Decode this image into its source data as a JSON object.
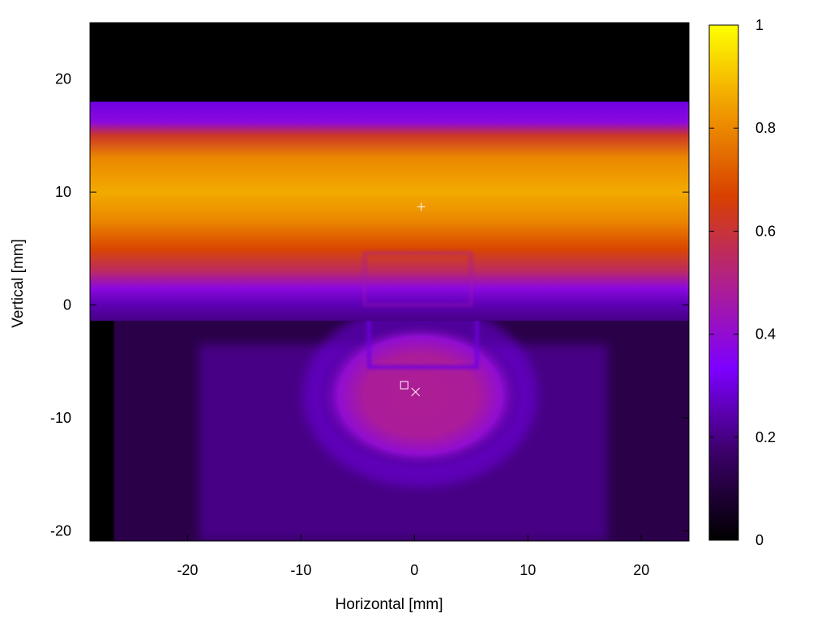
{
  "chart_data": {
    "type": "heatmap",
    "title": "",
    "xlabel": "Horizontal [mm]",
    "ylabel": "Vertical [mm]",
    "xlim": [
      -28.6,
      24.2
    ],
    "ylim": [
      -20.9,
      25.0
    ],
    "x_ticks": [
      -20,
      -10,
      0,
      10,
      20
    ],
    "y_ticks": [
      -20,
      -10,
      0,
      10,
      20
    ],
    "x_tick_labels": [
      "-20",
      "-10",
      "0",
      "10",
      "20"
    ],
    "y_tick_labels": [
      "-20",
      "-10",
      "0",
      "10",
      "20"
    ],
    "colorbar": {
      "range": [
        0,
        1
      ],
      "ticks": [
        0,
        0.2,
        0.4,
        0.6,
        0.8,
        1
      ],
      "tick_labels": [
        "0",
        "0.2",
        "0.4",
        "0.6",
        "0.8",
        "1"
      ],
      "colormap": [
        "#000000",
        "#3a0066",
        "#7d00ff",
        "#b0208c",
        "#d84000",
        "#f09a00",
        "#ffff00"
      ]
    },
    "markers": [
      {
        "symbol": "plus",
        "x": 0.6,
        "y": 8.7,
        "color": "#ffffff"
      },
      {
        "symbol": "square",
        "x": -0.9,
        "y": -7.1,
        "color": "#ffffff"
      },
      {
        "symbol": "cross",
        "x": 0.1,
        "y": -7.7,
        "color": "#ffffff"
      }
    ],
    "regions": {
      "top_dark": {
        "y_from": 18.0,
        "y_to": 25.0,
        "value": 0.0
      },
      "upper_beam": {
        "y_from": -1.4,
        "y_to": 18.0,
        "profile": [
          {
            "y": 18.0,
            "value": 0.3
          },
          {
            "y": 16.2,
            "value": 0.38
          },
          {
            "y": 15.0,
            "value": 0.62
          },
          {
            "y": 13.0,
            "value": 0.8
          },
          {
            "y": 10.0,
            "value": 0.86
          },
          {
            "y": 7.5,
            "value": 0.8
          },
          {
            "y": 5.0,
            "value": 0.68
          },
          {
            "y": 3.0,
            "value": 0.55
          },
          {
            "y": 1.5,
            "value": 0.38
          },
          {
            "y": 0.0,
            "value": 0.25
          },
          {
            "y": -1.4,
            "value": 0.2
          }
        ]
      },
      "lower_spot": {
        "x_center": 0.5,
        "y_center": -8.0,
        "x_radius": 9.0,
        "y_radius": 6.5,
        "peak_value": 0.5
      },
      "lower_background": {
        "x_from": -26.5,
        "x_to": 24.2,
        "y_from": -20.9,
        "y_to": -1.4,
        "value": 0.12
      },
      "lower_side_panel": {
        "x_from": -19.0,
        "x_to": 17.0,
        "y_from": -20.9,
        "y_to": -3.5,
        "value": 0.2
      },
      "lower_dark_left": {
        "x_from": -28.6,
        "x_to": -26.5,
        "y_from": -20.9,
        "y_to": -1.4,
        "value": 0.0
      },
      "dark_lines_vertical_x": [
        -9.2,
        0.0,
        9.6
      ],
      "dark_line_horizontal_y": -10.7,
      "inner_rectangle": {
        "x_from": -4.0,
        "x_to": 5.5,
        "y_from": -5.5,
        "y_to": -0.6
      },
      "upper_faint_rectangle": {
        "x_from": -4.4,
        "x_to": 5.0,
        "y_from": 0.0,
        "y_to": 4.6
      }
    }
  }
}
